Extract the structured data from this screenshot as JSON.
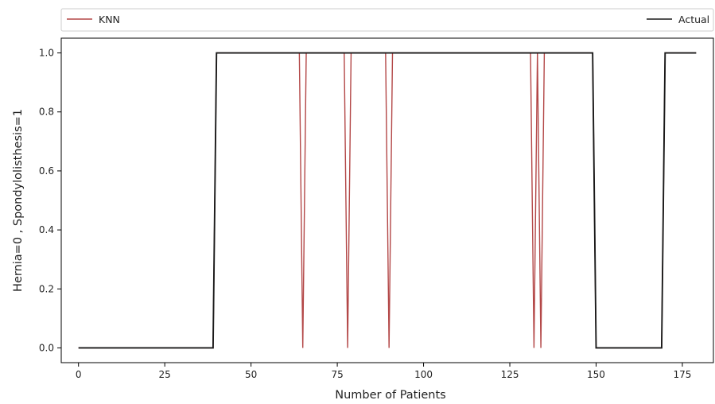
{
  "chart_data": {
    "type": "line",
    "title": "",
    "xlabel": "Number of Patients",
    "ylabel": "Hernia=0 , Spondylolisthesis=1",
    "xlim": [
      -5,
      184
    ],
    "ylim": [
      -0.05,
      1.05
    ],
    "xticks": [
      0,
      25,
      50,
      75,
      100,
      125,
      150,
      175
    ],
    "yticks": [
      0.0,
      0.2,
      0.4,
      0.6,
      0.8,
      1.0
    ],
    "xtick_labels": [
      "0",
      "25",
      "50",
      "75",
      "100",
      "125",
      "150",
      "175"
    ],
    "ytick_labels": [
      "0.0",
      "0.2",
      "0.4",
      "0.6",
      "0.8",
      "1.0"
    ],
    "legend": {
      "placement": "above-plot",
      "entries": [
        {
          "name": "KNN",
          "color": "#b34747"
        },
        {
          "name": "Actual",
          "color": "#1a1a1a"
        }
      ]
    },
    "series": [
      {
        "name": "KNN",
        "color": "#b34747",
        "x": [
          0,
          39,
          40,
          64,
          65,
          66,
          77,
          78,
          79,
          89,
          90,
          91,
          131,
          132,
          133,
          134,
          135,
          149,
          150,
          169,
          170,
          179
        ],
        "y": [
          0,
          0,
          1,
          1,
          0,
          1,
          1,
          0,
          1,
          1,
          0,
          1,
          1,
          0,
          1,
          0,
          1,
          1,
          0,
          0,
          1,
          1
        ]
      },
      {
        "name": "Actual",
        "color": "#1a1a1a",
        "x": [
          0,
          39,
          40,
          149,
          150,
          169,
          170,
          179
        ],
        "y": [
          0,
          0,
          1,
          1,
          0,
          0,
          1,
          1
        ]
      }
    ]
  }
}
